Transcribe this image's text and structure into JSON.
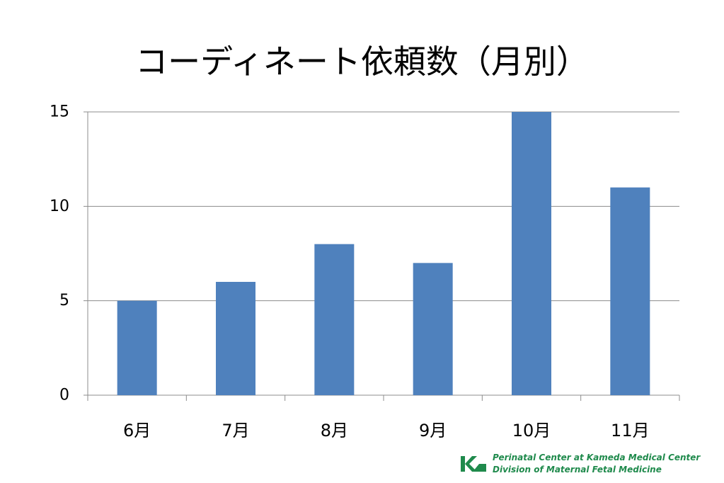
{
  "colors": {
    "bar": "#4f81bd",
    "grid": "#8c8c8c",
    "brand_green": "#1f8a4c"
  },
  "chart_data": {
    "type": "bar",
    "title": "コーディネート依頼数（月別）",
    "categories": [
      "6月",
      "7月",
      "8月",
      "9月",
      "10月",
      "11月"
    ],
    "values": [
      5,
      6,
      8,
      7,
      15,
      11
    ],
    "ylim": [
      0,
      15
    ],
    "yticks": [
      "0",
      "5",
      "10",
      "15"
    ],
    "grid": true,
    "legend": "none"
  },
  "footer": {
    "logo_icon": "kameda-logo-icon",
    "line1": "Perinatal Center at Kameda Medical Center",
    "line2": "Division of Maternal Fetal Medicine"
  }
}
